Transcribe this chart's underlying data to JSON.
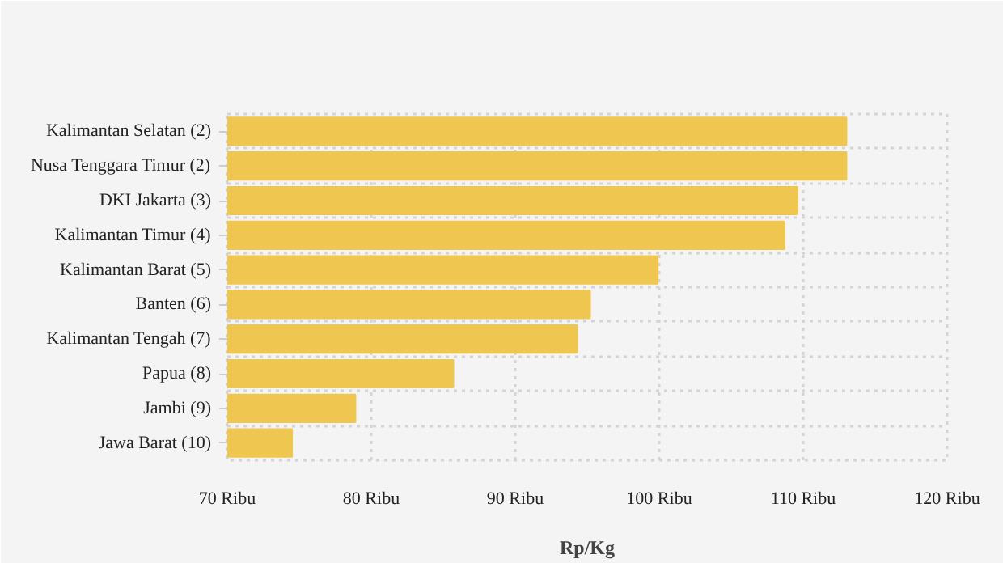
{
  "chart_data": {
    "type": "bar",
    "orientation": "horizontal",
    "xlabel": "Rp/Kg",
    "categories": [
      "Kalimantan Selatan (2)",
      "Nusa Tenggara Timur (2)",
      "DKI Jakarta (3)",
      "Kalimantan Timur (4)",
      "Kalimantan Barat (5)",
      "Banten (6)",
      "Kalimantan Tengah (7)",
      "Papua (8)",
      "Jambi (9)",
      "Jawa Barat (10)"
    ],
    "values": [
      113.0,
      113.0,
      109.6,
      108.7,
      99.9,
      95.2,
      94.3,
      85.7,
      78.9,
      74.5
    ],
    "color": "#efc650",
    "xlim": [
      70,
      120
    ],
    "xticks": [
      {
        "value": 70,
        "label": "70 Ribu"
      },
      {
        "value": 80,
        "label": "80 Ribu"
      },
      {
        "value": 90,
        "label": "90 Ribu"
      },
      {
        "value": 100,
        "label": "100 Ribu"
      },
      {
        "value": 110,
        "label": "110 Ribu"
      },
      {
        "value": 120,
        "label": "120 Ribu"
      }
    ],
    "grid": true
  }
}
